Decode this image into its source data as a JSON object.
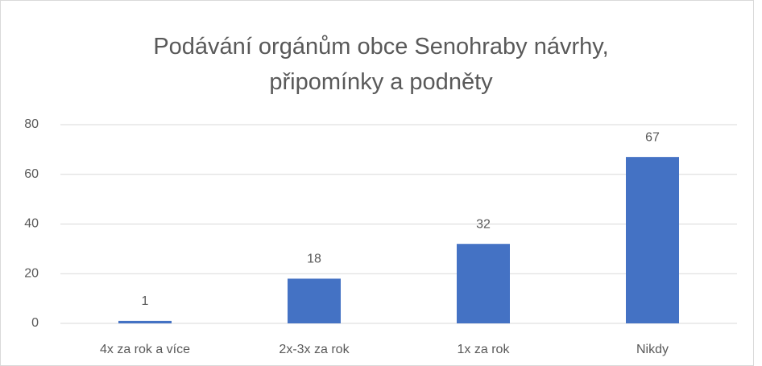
{
  "chart_data": {
    "type": "bar",
    "title": "Podávání orgánům obce Senohraby návrhy, připomínky a podněty",
    "categories": [
      "4x za rok a více",
      "2x-3x za rok",
      "1x za rok",
      "Nikdy"
    ],
    "values": [
      1,
      18,
      32,
      67
    ],
    "color": "#4472c4",
    "ylim": [
      0,
      80
    ],
    "yticks": [
      0,
      20,
      40,
      60,
      80
    ],
    "grid": true
  }
}
